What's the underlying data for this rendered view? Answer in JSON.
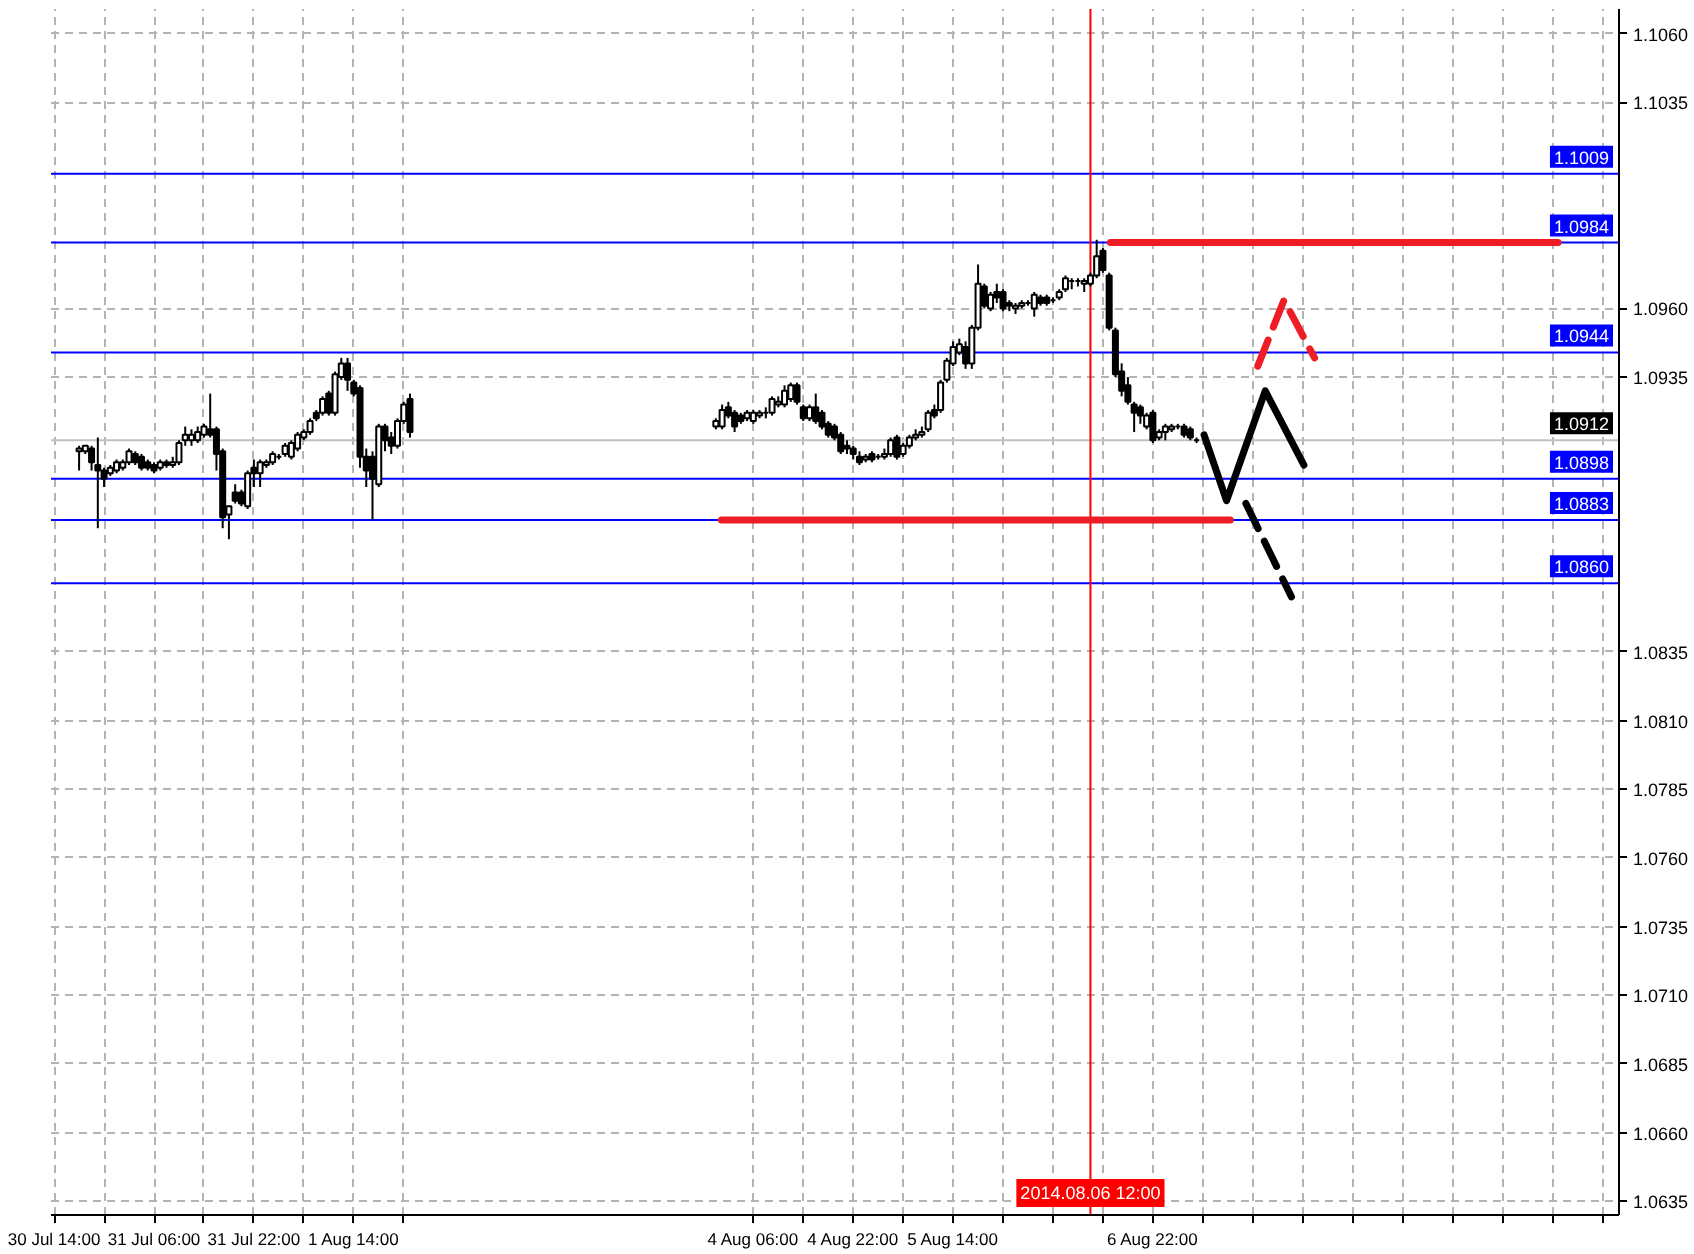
{
  "chart_data": {
    "type": "candlestick",
    "x": [
      "2014-07-30T18:00",
      "2014-07-30T19:00",
      "2014-07-30T20:00",
      "2014-07-30T21:00",
      "2014-07-30T22:00",
      "2014-07-30T23:00",
      "2014-07-31T00:00",
      "2014-07-31T01:00",
      "2014-07-31T02:00",
      "2014-07-31T03:00",
      "2014-07-31T04:00",
      "2014-07-31T05:00",
      "2014-07-31T06:00",
      "2014-07-31T07:00",
      "2014-07-31T08:00",
      "2014-07-31T09:00",
      "2014-07-31T10:00",
      "2014-07-31T11:00",
      "2014-07-31T12:00",
      "2014-07-31T13:00",
      "2014-07-31T14:00",
      "2014-07-31T15:00",
      "2014-07-31T16:00",
      "2014-07-31T17:00",
      "2014-07-31T18:00",
      "2014-07-31T19:00",
      "2014-07-31T20:00",
      "2014-07-31T21:00",
      "2014-07-31T22:00",
      "2014-07-31T23:00",
      "2014-08-01T00:00",
      "2014-08-01T01:00",
      "2014-08-01T02:00",
      "2014-08-01T03:00",
      "2014-08-01T04:00",
      "2014-08-01T05:00",
      "2014-08-01T06:00",
      "2014-08-01T07:00",
      "2014-08-01T08:00",
      "2014-08-01T09:00",
      "2014-08-01T10:00",
      "2014-08-01T11:00",
      "2014-08-01T12:00",
      "2014-08-01T13:00",
      "2014-08-01T14:00",
      "2014-08-01T15:00",
      "2014-08-01T16:00",
      "2014-08-01T17:00",
      "2014-08-01T18:00",
      "2014-08-01T19:00",
      "2014-08-01T20:00",
      "2014-08-01T21:00",
      "2014-08-01T22:00",
      "2014-08-01T23:00",
      "2014-08-04T00:00",
      "2014-08-04T01:00",
      "2014-08-04T02:00",
      "2014-08-04T03:00",
      "2014-08-04T04:00",
      "2014-08-04T05:00",
      "2014-08-04T06:00",
      "2014-08-04T07:00",
      "2014-08-04T08:00",
      "2014-08-04T09:00",
      "2014-08-04T10:00",
      "2014-08-04T11:00",
      "2014-08-04T12:00",
      "2014-08-04T13:00",
      "2014-08-04T14:00",
      "2014-08-04T15:00",
      "2014-08-04T16:00",
      "2014-08-04T17:00",
      "2014-08-04T18:00",
      "2014-08-04T19:00",
      "2014-08-04T20:00",
      "2014-08-04T21:00",
      "2014-08-04T22:00",
      "2014-08-04T23:00",
      "2014-08-05T00:00",
      "2014-08-05T01:00",
      "2014-08-05T02:00",
      "2014-08-05T03:00",
      "2014-08-05T04:00",
      "2014-08-05T05:00",
      "2014-08-05T06:00",
      "2014-08-05T07:00",
      "2014-08-05T08:00",
      "2014-08-05T09:00",
      "2014-08-05T10:00",
      "2014-08-05T11:00",
      "2014-08-05T12:00",
      "2014-08-05T13:00",
      "2014-08-05T14:00",
      "2014-08-05T15:00",
      "2014-08-05T16:00",
      "2014-08-05T17:00",
      "2014-08-05T18:00",
      "2014-08-05T19:00",
      "2014-08-05T20:00",
      "2014-08-05T21:00",
      "2014-08-05T22:00",
      "2014-08-05T23:00",
      "2014-08-06T00:00",
      "2014-08-06T01:00",
      "2014-08-06T02:00",
      "2014-08-06T03:00",
      "2014-08-06T04:00",
      "2014-08-06T05:00",
      "2014-08-06T06:00",
      "2014-08-06T07:00",
      "2014-08-06T08:00",
      "2014-08-06T09:00",
      "2014-08-06T10:00",
      "2014-08-06T11:00",
      "2014-08-06T12:00",
      "2014-08-06T13:00",
      "2014-08-06T14:00",
      "2014-08-06T15:00",
      "2014-08-06T16:00",
      "2014-08-06T17:00",
      "2014-08-06T18:00",
      "2014-08-06T19:00",
      "2014-08-06T20:00",
      "2014-08-06T21:00",
      "2014-08-06T22:00",
      "2014-08-06T23:00",
      "2014-08-07T00:00",
      "2014-08-07T01:00",
      "2014-08-07T02:00",
      "2014-08-07T03:00",
      "2014-08-07T04:00",
      "2014-08-07T05:00"
    ],
    "ohlc": [
      [
        1.0908,
        1.091,
        1.0901,
        1.0909
      ],
      [
        1.0908,
        1.091,
        1.0907,
        1.091
      ],
      [
        1.0909,
        1.091,
        1.0901,
        1.0904
      ],
      [
        1.0903,
        1.0913,
        1.088,
        1.0901
      ],
      [
        1.0901,
        1.0902,
        1.0895,
        1.0898
      ],
      [
        1.09,
        1.0903,
        1.0899,
        1.0902
      ],
      [
        1.0901,
        1.0905,
        1.09,
        1.0904
      ],
      [
        1.0902,
        1.0905,
        1.0901,
        1.0904
      ],
      [
        1.0904,
        1.0909,
        1.0903,
        1.0908
      ],
      [
        1.0907,
        1.0908,
        1.0903,
        1.0904
      ],
      [
        1.0906,
        1.0907,
        1.0901,
        1.0902
      ],
      [
        1.0904,
        1.0905,
        1.0901,
        1.0902
      ],
      [
        1.0903,
        1.0904,
        1.09,
        1.0901
      ],
      [
        1.0902,
        1.0905,
        1.0901,
        1.0904
      ],
      [
        1.0904,
        1.0905,
        1.0902,
        1.0903
      ],
      [
        1.0903,
        1.0906,
        1.0902,
        1.0904
      ],
      [
        1.0904,
        1.0912,
        1.0903,
        1.0911
      ],
      [
        1.0912,
        1.0917,
        1.091,
        1.0914
      ],
      [
        1.0912,
        1.0916,
        1.091,
        1.0914
      ],
      [
        1.0912,
        1.0917,
        1.0911,
        1.0915
      ],
      [
        1.0914,
        1.0918,
        1.0913,
        1.0917
      ],
      [
        1.0916,
        1.0929,
        1.0913,
        1.0914
      ],
      [
        1.0916,
        1.0917,
        1.0901,
        1.0907
      ],
      [
        1.0908,
        1.0909,
        1.088,
        1.0884
      ],
      [
        1.0885,
        1.0888,
        1.0876,
        1.0888
      ],
      [
        1.0893,
        1.0896,
        1.0889,
        1.089
      ],
      [
        1.0893,
        1.0894,
        1.0888,
        1.0889
      ],
      [
        1.0888,
        1.0901,
        1.0887,
        1.09
      ],
      [
        1.0902,
        1.0905,
        1.0895,
        1.09
      ],
      [
        1.09,
        1.0905,
        1.0895,
        1.0904
      ],
      [
        1.0903,
        1.0905,
        1.0902,
        1.0904
      ],
      [
        1.0904,
        1.0908,
        1.0903,
        1.0907
      ],
      [
        1.0906,
        1.0907,
        1.0905,
        1.0906
      ],
      [
        1.0907,
        1.0911,
        1.0906,
        1.091
      ],
      [
        1.0906,
        1.0912,
        1.0905,
        1.0911
      ],
      [
        1.0909,
        1.0915,
        1.0908,
        1.0914
      ],
      [
        1.0913,
        1.0916,
        1.0912,
        1.0915
      ],
      [
        1.0915,
        1.092,
        1.0914,
        1.0919
      ],
      [
        1.0922,
        1.0923,
        1.0919,
        1.092
      ],
      [
        1.0922,
        1.0928,
        1.0921,
        1.0927
      ],
      [
        1.0929,
        1.093,
        1.0921,
        1.0922
      ],
      [
        1.0922,
        1.0937,
        1.0921,
        1.0936
      ],
      [
        1.0935,
        1.0942,
        1.0934,
        1.094
      ],
      [
        1.094,
        1.0942,
        1.093,
        1.0934
      ],
      [
        1.0933,
        1.0934,
        1.0928,
        1.0929
      ],
      [
        1.0931,
        1.0932,
        1.0902,
        1.0906
      ],
      [
        1.0906,
        1.0909,
        1.0895,
        1.0901
      ],
      [
        1.0906,
        1.0908,
        1.0883,
        1.0898
      ],
      [
        1.0896,
        1.0918,
        1.0895,
        1.0917
      ],
      [
        1.0917,
        1.0918,
        1.0908,
        1.0912
      ],
      [
        1.0913,
        1.0915,
        1.0907,
        1.091
      ],
      [
        1.091,
        1.092,
        1.0909,
        1.0919
      ],
      [
        1.0919,
        1.0926,
        1.0918,
        1.0925
      ],
      [
        1.0927,
        1.0929,
        1.0913,
        1.0915
      ],
      [
        1.0917,
        1.092,
        1.0916,
        1.0919
      ],
      [
        1.0917,
        1.0925,
        1.0916,
        1.0923
      ],
      [
        1.0924,
        1.0926,
        1.092,
        1.0921
      ],
      [
        1.0922,
        1.0923,
        1.0915,
        1.0917
      ],
      [
        1.0921,
        1.0922,
        1.0918,
        1.0919
      ],
      [
        1.092,
        1.0923,
        1.0919,
        1.0922
      ],
      [
        1.0919,
        1.0923,
        1.0918,
        1.0922
      ],
      [
        1.0921,
        1.0923,
        1.092,
        1.0922
      ],
      [
        1.0922,
        1.0924,
        1.092,
        1.0922
      ],
      [
        1.0922,
        1.0928,
        1.0921,
        1.0927
      ],
      [
        1.0925,
        1.0928,
        1.0924,
        1.0926
      ],
      [
        1.0925,
        1.0932,
        1.0924,
        1.093
      ],
      [
        1.0927,
        1.0933,
        1.0926,
        1.0932
      ],
      [
        1.0932,
        1.0933,
        1.0925,
        1.0926
      ],
      [
        1.0924,
        1.0925,
        1.0919,
        1.092
      ],
      [
        1.092,
        1.0925,
        1.0919,
        1.0924
      ],
      [
        1.0924,
        1.0929,
        1.0918,
        1.0919
      ],
      [
        1.0922,
        1.0923,
        1.0916,
        1.0917
      ],
      [
        1.0918,
        1.0919,
        1.0913,
        1.0914
      ],
      [
        1.0917,
        1.0918,
        1.0912,
        1.0913
      ],
      [
        1.0914,
        1.0915,
        1.0907,
        1.0908
      ],
      [
        1.091,
        1.0912,
        1.0907,
        1.0909
      ],
      [
        1.0909,
        1.091,
        1.0905,
        1.0907
      ],
      [
        1.0906,
        1.0908,
        1.0903,
        1.0904
      ],
      [
        1.0905,
        1.0907,
        1.0904,
        1.0906
      ],
      [
        1.0907,
        1.0908,
        1.0904,
        1.0905
      ],
      [
        1.0906,
        1.0907,
        1.0905,
        1.0906
      ],
      [
        1.0906,
        1.0909,
        1.0905,
        1.0907
      ],
      [
        1.0907,
        1.0913,
        1.0906,
        1.0912
      ],
      [
        1.0913,
        1.0914,
        1.0905,
        1.0906
      ],
      [
        1.0907,
        1.0911,
        1.0906,
        1.091
      ],
      [
        1.091,
        1.0914,
        1.0909,
        1.0913
      ],
      [
        1.0913,
        1.0916,
        1.0912,
        1.0914
      ],
      [
        1.0914,
        1.0917,
        1.0913,
        1.0915
      ],
      [
        1.0916,
        1.0923,
        1.0915,
        1.0922
      ],
      [
        1.0923,
        1.0925,
        1.092,
        1.0921
      ],
      [
        1.0923,
        1.0934,
        1.0922,
        1.0933
      ],
      [
        1.0934,
        1.0942,
        1.0933,
        1.0941
      ],
      [
        1.094,
        1.0948,
        1.0939,
        1.0946
      ],
      [
        1.0944,
        1.0949,
        1.0943,
        1.0947
      ],
      [
        1.0946,
        1.0948,
        1.0938,
        1.094
      ],
      [
        1.094,
        1.0954,
        1.0938,
        1.0953
      ],
      [
        1.0953,
        1.0976,
        1.0952,
        1.0969
      ],
      [
        1.0968,
        1.0969,
        1.096,
        1.0961
      ],
      [
        1.096,
        1.0966,
        1.0959,
        1.0965
      ],
      [
        1.0966,
        1.0969,
        1.0962,
        1.0964
      ],
      [
        1.0966,
        1.0967,
        1.0959,
        1.096
      ],
      [
        1.0962,
        1.0963,
        1.0959,
        1.0961
      ],
      [
        1.096,
        1.0962,
        1.0958,
        1.0961
      ],
      [
        1.0961,
        1.0963,
        1.096,
        1.0962
      ],
      [
        1.0962,
        1.0963,
        1.0961,
        1.0962
      ],
      [
        1.096,
        1.0966,
        1.0957,
        1.0965
      ],
      [
        1.0964,
        1.0965,
        1.0961,
        1.0962
      ],
      [
        1.0964,
        1.0965,
        1.0961,
        1.0962
      ],
      [
        1.0963,
        1.0964,
        1.0962,
        1.0963
      ],
      [
        1.0964,
        1.0967,
        1.0963,
        1.0966
      ],
      [
        1.0967,
        1.0972,
        1.0966,
        1.0971
      ],
      [
        1.097,
        1.0971,
        1.0967,
        1.097
      ],
      [
        1.097,
        1.0971,
        1.0968,
        1.097
      ],
      [
        1.0969,
        1.0971,
        1.0966,
        1.097
      ],
      [
        1.0969,
        1.0973,
        1.0968,
        1.0972
      ],
      [
        1.0972,
        1.0985,
        1.0971,
        1.0979
      ],
      [
        1.0981,
        1.0982,
        1.0973,
        1.0974
      ],
      [
        1.0972,
        1.0973,
        1.0952,
        1.0953
      ],
      [
        1.0952,
        1.0953,
        1.0935,
        1.0936
      ],
      [
        1.0937,
        1.094,
        1.0928,
        1.093
      ],
      [
        1.0932,
        1.0935,
        1.0925,
        1.0926
      ],
      [
        1.0925,
        1.0926,
        1.0915,
        1.0922
      ],
      [
        1.0924,
        1.0925,
        1.0918,
        1.0921
      ],
      [
        1.0917,
        1.0922,
        1.0916,
        1.0921
      ],
      [
        1.0922,
        1.0923,
        1.0911,
        1.0912
      ],
      [
        1.0913,
        1.0916,
        1.0912,
        1.0915
      ],
      [
        1.0915,
        1.0918,
        1.0912,
        1.0917
      ],
      [
        1.0916,
        1.0918,
        1.0915,
        1.0917
      ],
      [
        1.0917,
        1.0918,
        1.0916,
        1.0917
      ],
      [
        1.0917,
        1.0918,
        1.0913,
        1.0914
      ],
      [
        1.0916,
        1.0917,
        1.0912,
        1.0913
      ],
      [
        1.0912,
        1.0913,
        1.0911,
        1.0912
      ]
    ],
    "series": [
      {
        "type": "line",
        "color": "#ee1c25",
        "x": [
          "2014-08-06T15:12",
          "2014-08-09T14:54"
        ],
        "values": [
          1.0984,
          1.0984
        ]
      },
      {
        "type": "line",
        "color": "#ee1c25",
        "x": [
          "2014-08-04T00:54",
          "2014-08-07T10:24"
        ],
        "values": [
          1.0883,
          1.0883
        ]
      },
      {
        "type": "line",
        "color": "#000000",
        "x": [
          "2014-08-07T06:12",
          "2014-08-07T09:48",
          "2014-08-07T16:00",
          "2014-08-07T22:12"
        ],
        "values": [
          1.0914,
          1.089,
          1.093,
          1.0903
        ]
      },
      {
        "type": "line",
        "color": "#000000",
        "line_style": "dashed",
        "x": [
          "2014-08-07T12:54",
          "2014-08-07T20:12"
        ],
        "values": [
          1.0889,
          1.0855
        ]
      },
      {
        "type": "line",
        "color": "#ee1c25",
        "line_style": "dashed",
        "x": [
          "2014-08-07T14:48",
          "2014-08-07T19:00",
          "2014-08-07T23:54"
        ],
        "values": [
          1.0939,
          1.0963,
          1.0942
        ]
      }
    ],
    "xlim": [
      "2014-07-30T13:30",
      "2014-08-10T00:40"
    ],
    "ylim": [
      1.063,
      1.1069
    ],
    "xticks": [
      {
        "value": "2014-07-30T14:00",
        "label": "30 Jul 14:00"
      },
      {
        "value": "2014-07-30T22:00",
        "label": null
      },
      {
        "value": "2014-07-31T06:00",
        "label": "31 Jul 06:00"
      },
      {
        "value": "2014-07-31T14:00",
        "label": null
      },
      {
        "value": "2014-07-31T22:00",
        "label": "31 Jul 22:00"
      },
      {
        "value": "2014-08-01T06:00",
        "label": null
      },
      {
        "value": "2014-08-01T14:00",
        "label": "1 Aug 14:00"
      },
      {
        "value": "2014-08-01T22:00",
        "label": null
      },
      {
        "value": "2014-08-04T06:00",
        "label": "4 Aug 06:00"
      },
      {
        "value": "2014-08-04T14:00",
        "label": null
      },
      {
        "value": "2014-08-04T22:00",
        "label": "4 Aug 22:00"
      },
      {
        "value": "2014-08-05T06:00",
        "label": null
      },
      {
        "value": "2014-08-05T14:00",
        "label": "5 Aug 14:00"
      },
      {
        "value": "2014-08-05T22:00",
        "label": null
      },
      {
        "value": "2014-08-06T06:00",
        "label": null
      },
      {
        "value": "2014-08-06T14:00",
        "label": null
      },
      {
        "value": "2014-08-06T22:00",
        "label": "6 Aug 22:00"
      },
      {
        "value": "2014-08-07T06:00",
        "label": null
      },
      {
        "value": "2014-08-07T14:00",
        "label": null
      },
      {
        "value": "2014-08-07T22:00",
        "label": null
      },
      {
        "value": "2014-08-08T06:00",
        "label": null
      },
      {
        "value": "2014-08-08T14:00",
        "label": null
      },
      {
        "value": "2014-08-08T22:00",
        "label": null
      },
      {
        "value": "2014-08-09T06:00",
        "label": null
      },
      {
        "value": "2014-08-09T14:00",
        "label": null
      },
      {
        "value": "2014-08-09T22:00",
        "label": null
      }
    ],
    "yticks": [
      1.0635,
      {
        "value": 1.066,
        "label": "1.0660"
      },
      1.0685,
      {
        "value": 1.071,
        "label": "1.0710"
      },
      1.0735,
      {
        "value": 1.076,
        "label": "1.0760"
      },
      1.0785,
      {
        "value": 1.081,
        "label": "1.0810"
      },
      1.0835,
      1.0935,
      {
        "value": 1.096,
        "label": "1.0960"
      },
      1.1035,
      {
        "value": 1.106,
        "label": "1.1060"
      }
    ],
    "grid": true,
    "ref_lines": [
      {
        "axis": "y",
        "value": 1.1009,
        "label": "1.1009",
        "color": "#0000ff"
      },
      {
        "axis": "y",
        "value": 1.0984,
        "label": "1.0984",
        "color": "#0000ff"
      },
      {
        "axis": "y",
        "value": 1.0944,
        "label": "1.0944",
        "color": "#0000ff"
      },
      {
        "axis": "y",
        "value": 1.0912,
        "label": "1.0912",
        "color": "#c0c0c0"
      },
      {
        "axis": "y",
        "value": 1.0898,
        "label": "1.0898",
        "color": "#0000ff"
      },
      {
        "axis": "y",
        "value": 1.0883,
        "label": "1.0883",
        "color": "#0000ff"
      },
      {
        "axis": "y",
        "value": 1.086,
        "label": "1.0860",
        "color": "#0000ff"
      },
      {
        "axis": "x",
        "value": "2014-08-06T12:00",
        "label": "2014.08.06 12:00",
        "color": "#ff0000"
      }
    ]
  }
}
